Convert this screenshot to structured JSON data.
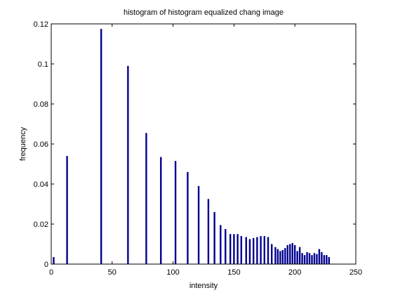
{
  "chart_data": {
    "type": "bar",
    "title": "histogram of histogram equalized chang image",
    "xlabel": "intensity",
    "ylabel": "frequency",
    "xlim": [
      0,
      250
    ],
    "ylim": [
      0,
      0.12
    ],
    "xticks": [
      0,
      50,
      100,
      150,
      200,
      250
    ],
    "xtick_labels": [
      "0",
      "50",
      "100",
      "150",
      "200",
      "250"
    ],
    "yticks": [
      0,
      0.02,
      0.04,
      0.06,
      0.08,
      0.1,
      0.12
    ],
    "ytick_labels": [
      "0",
      "0.02",
      "0.04",
      "0.06",
      "0.08",
      "0.1",
      "0.12"
    ],
    "grid": false,
    "bar_color": "#00008f",
    "x": [
      2,
      13,
      41,
      63,
      78,
      90,
      102,
      112,
      121,
      129,
      134,
      139,
      143,
      147,
      150,
      153,
      156,
      160,
      163,
      166,
      169,
      172,
      175,
      178,
      181,
      184,
      186,
      188,
      190,
      192,
      194,
      196,
      198,
      200,
      202,
      204,
      206,
      208,
      210,
      212,
      214,
      216,
      218,
      220,
      222,
      224,
      226,
      228
    ],
    "values": [
      0.0035,
      0.054,
      0.1175,
      0.099,
      0.0655,
      0.0535,
      0.0515,
      0.046,
      0.039,
      0.0325,
      0.026,
      0.0195,
      0.0175,
      0.015,
      0.015,
      0.015,
      0.014,
      0.0135,
      0.0125,
      0.013,
      0.0135,
      0.014,
      0.014,
      0.0135,
      0.01,
      0.0085,
      0.0075,
      0.0065,
      0.007,
      0.008,
      0.0095,
      0.01,
      0.0105,
      0.0095,
      0.0065,
      0.0085,
      0.0055,
      0.0045,
      0.006,
      0.0055,
      0.0045,
      0.0055,
      0.005,
      0.0075,
      0.006,
      0.0045,
      0.0045,
      0.0035
    ]
  }
}
